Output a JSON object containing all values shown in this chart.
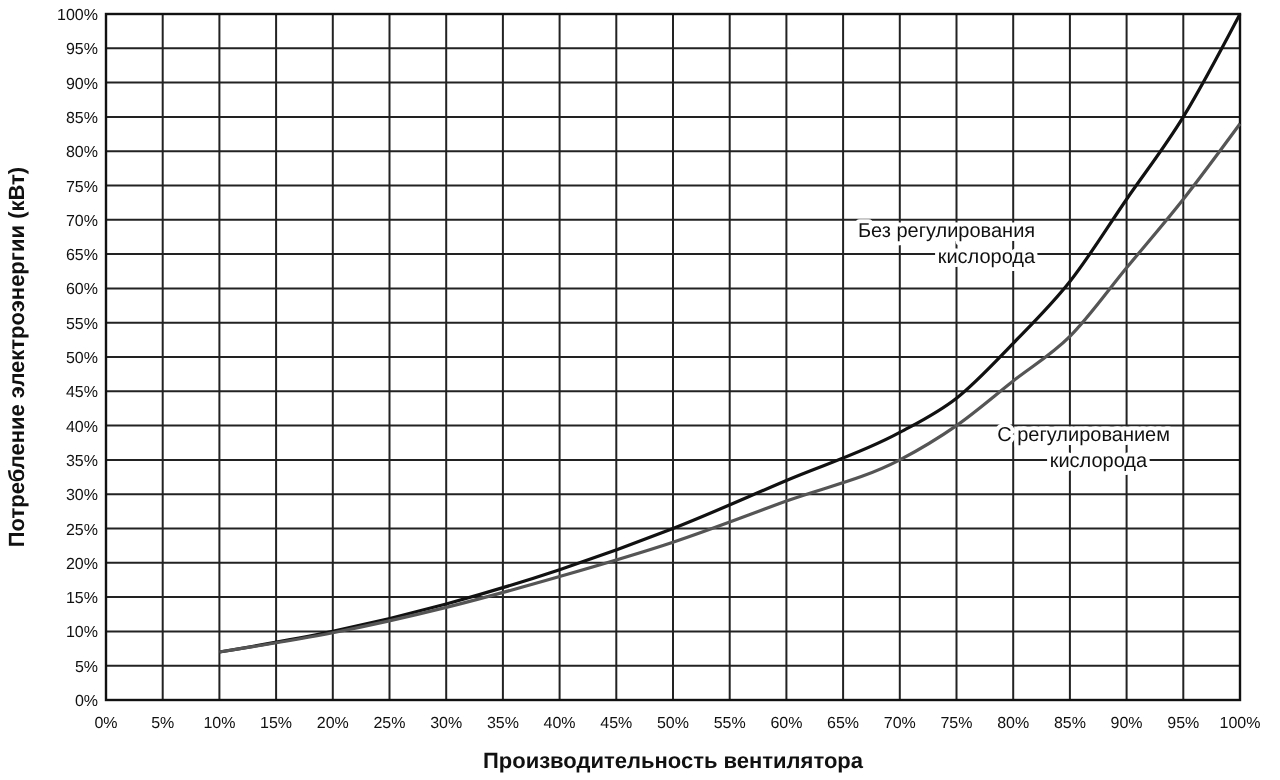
{
  "chart_data": {
    "type": "line",
    "xlabel": "Производительность вентилятора",
    "ylabel": "Потребление электроэнергии (кВт)",
    "x": [
      10,
      20,
      30,
      40,
      50,
      60,
      70,
      75,
      80,
      85,
      90,
      95,
      100
    ],
    "series": [
      {
        "name": "Без регулирования\nкислорода",
        "color": "#111111",
        "values": [
          7,
          10,
          14,
          19,
          25,
          32,
          39,
          44,
          52,
          61,
          73,
          85,
          100
        ]
      },
      {
        "name": "С регулированием\nкислорода",
        "color": "#555555",
        "values": [
          7,
          9.8,
          13.5,
          18,
          23,
          29,
          35,
          40,
          46.5,
          53,
          63,
          73,
          84
        ]
      }
    ],
    "xlim": [
      0,
      100
    ],
    "ylim": [
      0,
      100
    ],
    "xticks": [
      {
        "value": 0,
        "label": "0%"
      },
      {
        "value": 5,
        "label": "5%"
      },
      {
        "value": 10,
        "label": "10%"
      },
      {
        "value": 15,
        "label": "15%"
      },
      {
        "value": 20,
        "label": "20%"
      },
      {
        "value": 25,
        "label": "25%"
      },
      {
        "value": 30,
        "label": "30%"
      },
      {
        "value": 35,
        "label": "35%"
      },
      {
        "value": 40,
        "label": "40%"
      },
      {
        "value": 45,
        "label": "45%"
      },
      {
        "value": 50,
        "label": "50%"
      },
      {
        "value": 55,
        "label": "55%"
      },
      {
        "value": 60,
        "label": "60%"
      },
      {
        "value": 65,
        "label": "65%"
      },
      {
        "value": 70,
        "label": "70%"
      },
      {
        "value": 75,
        "label": "75%"
      },
      {
        "value": 80,
        "label": "80%"
      },
      {
        "value": 85,
        "label": "85%"
      },
      {
        "value": 90,
        "label": "90%"
      },
      {
        "value": 95,
        "label": "95%"
      },
      {
        "value": 100,
        "label": "100%"
      }
    ],
    "yticks": [
      {
        "value": 0,
        "label": "0%"
      },
      {
        "value": 5,
        "label": "5%"
      },
      {
        "value": 10,
        "label": "10%"
      },
      {
        "value": 15,
        "label": "15%"
      },
      {
        "value": 20,
        "label": "20%"
      },
      {
        "value": 25,
        "label": "25%"
      },
      {
        "value": 30,
        "label": "30%"
      },
      {
        "value": 35,
        "label": "35%"
      },
      {
        "value": 40,
        "label": "40%"
      },
      {
        "value": 45,
        "label": "45%"
      },
      {
        "value": 50,
        "label": "50%"
      },
      {
        "value": 55,
        "label": "55%"
      },
      {
        "value": 60,
        "label": "60%"
      },
      {
        "value": 65,
        "label": "65%"
      },
      {
        "value": 70,
        "label": "70%"
      },
      {
        "value": 75,
        "label": "75%"
      },
      {
        "value": 80,
        "label": "80%"
      },
      {
        "value": 85,
        "label": "85%"
      },
      {
        "value": 90,
        "label": "90%"
      },
      {
        "value": 95,
        "label": "95%"
      },
      {
        "value": 100,
        "label": "100%"
      }
    ],
    "grid": true,
    "marker": "none",
    "line_style": "solid"
  }
}
